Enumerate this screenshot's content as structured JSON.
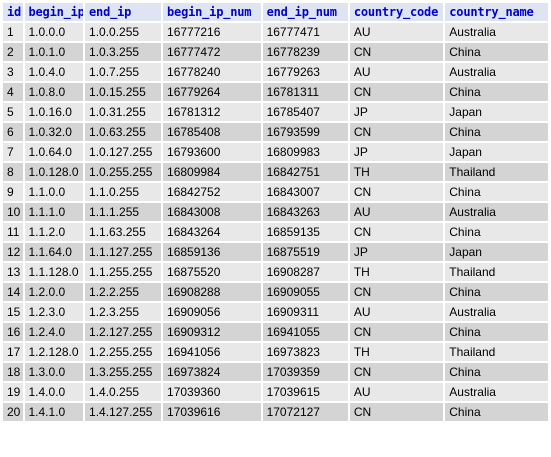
{
  "table": {
    "columns": [
      "id",
      "begin_ip",
      "end_ip",
      "begin_ip_num",
      "end_ip_num",
      "country_code",
      "country_name"
    ],
    "rows": [
      [
        "1",
        "1.0.0.0",
        "1.0.0.255",
        "16777216",
        "16777471",
        "AU",
        "Australia"
      ],
      [
        "2",
        "1.0.1.0",
        "1.0.3.255",
        "16777472",
        "16778239",
        "CN",
        "China"
      ],
      [
        "3",
        "1.0.4.0",
        "1.0.7.255",
        "16778240",
        "16779263",
        "AU",
        "Australia"
      ],
      [
        "4",
        "1.0.8.0",
        "1.0.15.255",
        "16779264",
        "16781311",
        "CN",
        "China"
      ],
      [
        "5",
        "1.0.16.0",
        "1.0.31.255",
        "16781312",
        "16785407",
        "JP",
        "Japan"
      ],
      [
        "6",
        "1.0.32.0",
        "1.0.63.255",
        "16785408",
        "16793599",
        "CN",
        "China"
      ],
      [
        "7",
        "1.0.64.0",
        "1.0.127.255",
        "16793600",
        "16809983",
        "JP",
        "Japan"
      ],
      [
        "8",
        "1.0.128.0",
        "1.0.255.255",
        "16809984",
        "16842751",
        "TH",
        "Thailand"
      ],
      [
        "9",
        "1.1.0.0",
        "1.1.0.255",
        "16842752",
        "16843007",
        "CN",
        "China"
      ],
      [
        "10",
        "1.1.1.0",
        "1.1.1.255",
        "16843008",
        "16843263",
        "AU",
        "Australia"
      ],
      [
        "11",
        "1.1.2.0",
        "1.1.63.255",
        "16843264",
        "16859135",
        "CN",
        "China"
      ],
      [
        "12",
        "1.1.64.0",
        "1.1.127.255",
        "16859136",
        "16875519",
        "JP",
        "Japan"
      ],
      [
        "13",
        "1.1.128.0",
        "1.1.255.255",
        "16875520",
        "16908287",
        "TH",
        "Thailand"
      ],
      [
        "14",
        "1.2.0.0",
        "1.2.2.255",
        "16908288",
        "16909055",
        "CN",
        "China"
      ],
      [
        "15",
        "1.2.3.0",
        "1.2.3.255",
        "16909056",
        "16909311",
        "AU",
        "Australia"
      ],
      [
        "16",
        "1.2.4.0",
        "1.2.127.255",
        "16909312",
        "16941055",
        "CN",
        "China"
      ],
      [
        "17",
        "1.2.128.0",
        "1.2.255.255",
        "16941056",
        "16973823",
        "TH",
        "Thailand"
      ],
      [
        "18",
        "1.3.0.0",
        "1.3.255.255",
        "16973824",
        "17039359",
        "CN",
        "China"
      ],
      [
        "19",
        "1.4.0.0",
        "1.4.0.255",
        "17039360",
        "17039615",
        "AU",
        "Australia"
      ],
      [
        "20",
        "1.4.1.0",
        "1.4.127.255",
        "17039616",
        "17072127",
        "CN",
        "China"
      ]
    ]
  },
  "colors": {
    "header_bg": "#dee4f2",
    "header_text": "#0000cc",
    "row_odd": "#e8e8e8",
    "row_even": "#d4d4d4"
  }
}
